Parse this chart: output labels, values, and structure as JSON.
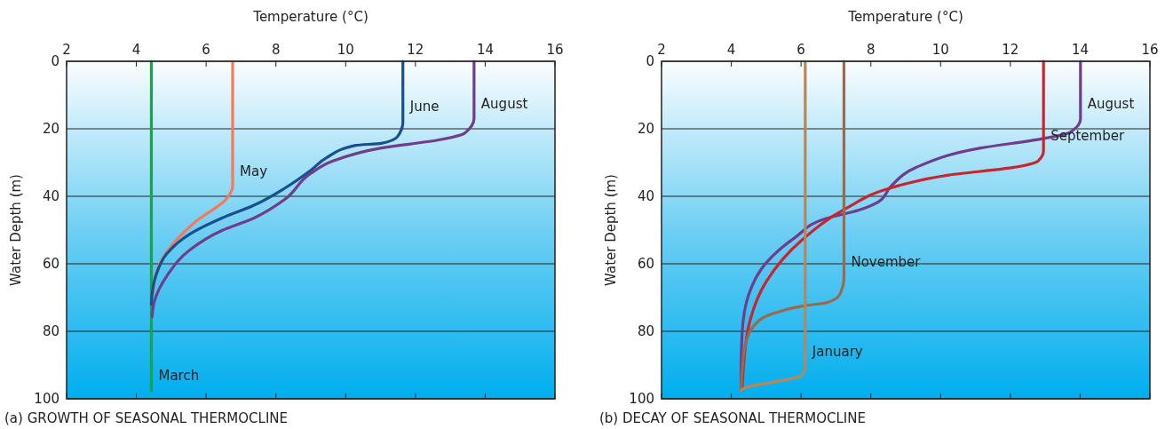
{
  "chart_data": [
    {
      "type": "line",
      "title": "(a) GROWTH OF SEASONAL THERMOCLINE",
      "xlabel": "Temperature (°C)",
      "ylabel": "Water Depth (m)",
      "xlim": [
        2,
        16
      ],
      "xticks": [
        2,
        4,
        6,
        8,
        10,
        12,
        14,
        16
      ],
      "ylim": [
        100,
        0
      ],
      "yticks": [
        0,
        20,
        40,
        60,
        80,
        100
      ],
      "grid": "y",
      "line_style": "solid",
      "marker": "none",
      "series": [
        {
          "name": "March",
          "color": "#1aa34a",
          "x": [
            4.43,
            4.43
          ],
          "values": [
            0,
            97.6
          ]
        },
        {
          "name": "May",
          "color": "#f47a5a",
          "x": [
            6.76,
            6.76,
            6.58,
            5.71,
            4.98,
            4.6,
            4.47
          ],
          "values": [
            0,
            37,
            40.8,
            47.4,
            55,
            61.6,
            69
          ]
        },
        {
          "name": "June",
          "color": "#1a4f8f",
          "x": [
            11.64,
            11.64,
            11.48,
            11.02,
            10.29,
            9.46,
            9.0,
            8.27,
            7.36,
            6.44,
            5.53,
            4.88,
            4.56,
            4.45,
            4.43
          ],
          "values": [
            0,
            18,
            22.4,
            24.3,
            24.9,
            28.5,
            32.3,
            37.5,
            42.7,
            46.5,
            51.2,
            56.9,
            63.5,
            69,
            72
          ]
        },
        {
          "name": "August",
          "color": "#6f3d8c",
          "x": [
            13.68,
            13.68,
            13.4,
            12.67,
            11.02,
            9.65,
            9.0,
            8.27,
            7.36,
            6.44,
            5.53,
            4.88,
            4.52,
            4.45
          ],
          "values": [
            0,
            17,
            21.4,
            23.3,
            25.7,
            29.5,
            33.2,
            40.8,
            46.5,
            50.2,
            55.9,
            63.5,
            71,
            75.7
          ]
        }
      ]
    },
    {
      "type": "line",
      "title": "(b) DECAY OF SEASONAL THERMOCLINE",
      "xlabel": "Temperature (°C)",
      "ylabel": "Water Depth (m)",
      "xlim": [
        2,
        16
      ],
      "xticks": [
        2,
        4,
        6,
        8,
        10,
        12,
        14,
        16
      ],
      "ylim": [
        100,
        0
      ],
      "yticks": [
        0,
        20,
        40,
        60,
        80,
        100
      ],
      "grid": "y",
      "line_style": "solid",
      "marker": "none",
      "series": [
        {
          "name": "August",
          "color": "#6f3d8c",
          "x": [
            14.01,
            14.01,
            13.72,
            12.89,
            11.15,
            9.31,
            8.58,
            8.21,
            7.66,
            6.74,
            5.83,
            5.0,
            4.5,
            4.31,
            4.28,
            4.28
          ],
          "values": [
            0,
            17.2,
            21,
            23,
            25.7,
            31.4,
            37,
            41.7,
            44.1,
            46.5,
            52.2,
            59.7,
            69.1,
            80.5,
            91.8,
            97.5
          ]
        },
        {
          "name": "September",
          "color": "#c8262e",
          "x": [
            12.95,
            12.95,
            12.8,
            12.06,
            10.23,
            8.58,
            7.29,
            6.01,
            5.0,
            4.54,
            4.34,
            4.31
          ],
          "values": [
            0,
            26.6,
            29.5,
            31.5,
            33.7,
            37.5,
            43.6,
            53.1,
            65.3,
            76.7,
            91.8,
            97.5
          ]
        },
        {
          "name": "November",
          "color": "#9a6a4f",
          "x": [
            7.23,
            7.23,
            7.11,
            6.74,
            6.1,
            5.18,
            4.63,
            4.4,
            4.31,
            4.28
          ],
          "values": [
            0,
            63.9,
            69.1,
            71.5,
            72.4,
            74.8,
            78.6,
            84.2,
            91.8,
            97.5
          ]
        },
        {
          "name": "January",
          "color": "#b8865a",
          "x": [
            6.12,
            6.12,
            6.0,
            5.18,
            4.45,
            4.28
          ],
          "values": [
            0,
            90.4,
            93.2,
            95.1,
            96.5,
            97.6
          ]
        }
      ]
    }
  ]
}
